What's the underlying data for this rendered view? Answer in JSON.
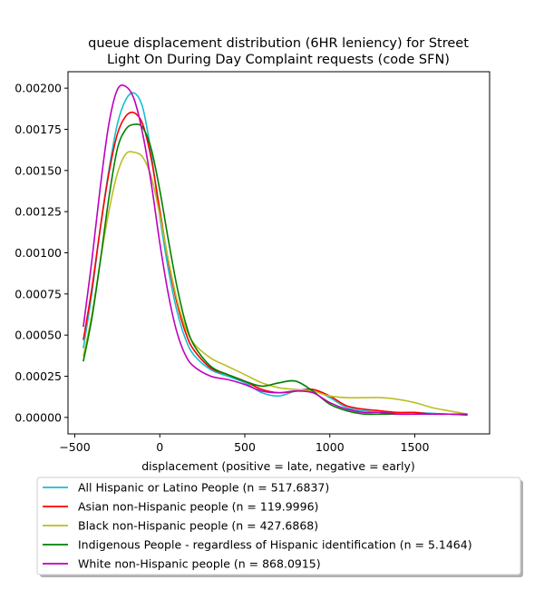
{
  "chart_data": {
    "type": "line",
    "title": "queue displacement distribution (6HR leniency) for Street Light On During Day Complaint  requests (code SFN)",
    "title_lines": [
      "queue displacement distribution (6HR leniency) for Street",
      "Light On During Day Complaint  requests (code SFN)"
    ],
    "xlabel": "displacement (positive = late, negative = early)",
    "ylabel": "",
    "xlim": [
      -540,
      1940
    ],
    "ylim": [
      -0.0001,
      0.0021
    ],
    "xticks": [
      -500,
      0,
      500,
      1000,
      1500
    ],
    "xtick_labels": [
      "−500",
      "0",
      "500",
      "1000",
      "1500"
    ],
    "yticks": [
      0.0,
      0.00025,
      0.0005,
      0.00075,
      0.001,
      0.00125,
      0.0015,
      0.00175,
      0.002
    ],
    "ytick_labels": [
      "0.00000",
      "0.00025",
      "0.00050",
      "0.00075",
      "0.00100",
      "0.00125",
      "0.00150",
      "0.00175",
      "0.00200"
    ],
    "grid": false,
    "legend_position": "below-plot",
    "series": [
      {
        "name": "All Hispanic or Latino People (n = 517.6837)",
        "color": "#17becf",
        "x": [
          -450,
          -400,
          -350,
          -300,
          -250,
          -200,
          -150,
          -100,
          -50,
          0,
          50,
          100,
          150,
          200,
          300,
          400,
          500,
          600,
          700,
          800,
          900,
          1000,
          1100,
          1200,
          1300,
          1400,
          1500,
          1600,
          1700,
          1810
        ],
        "y": [
          0.00042,
          0.00075,
          0.00115,
          0.0015,
          0.00178,
          0.00193,
          0.00197,
          0.00188,
          0.0016,
          0.00122,
          0.0009,
          0.00065,
          0.00048,
          0.00038,
          0.00029,
          0.00025,
          0.00021,
          0.00015,
          0.00013,
          0.00016,
          0.00017,
          0.00012,
          6e-05,
          4e-05,
          3e-05,
          3e-05,
          3e-05,
          2.5e-05,
          2e-05,
          1.5e-05
        ]
      },
      {
        "name": "Asian non-Hispanic people (n = 119.9996)",
        "color": "#ff0000",
        "x": [
          -450,
          -400,
          -350,
          -300,
          -250,
          -200,
          -150,
          -100,
          -50,
          0,
          50,
          100,
          150,
          200,
          300,
          400,
          500,
          600,
          700,
          800,
          900,
          1000,
          1100,
          1200,
          1300,
          1400,
          1500,
          1600,
          1700,
          1810
        ],
        "y": [
          0.00047,
          0.00078,
          0.00115,
          0.00148,
          0.00172,
          0.00183,
          0.00185,
          0.00178,
          0.00157,
          0.00126,
          0.00095,
          0.0007,
          0.00052,
          0.00041,
          0.0003,
          0.00026,
          0.00022,
          0.00017,
          0.00015,
          0.00016,
          0.00017,
          0.00013,
          7e-05,
          5e-05,
          4e-05,
          3e-05,
          3e-05,
          2e-05,
          2e-05,
          2e-05
        ]
      },
      {
        "name": "Black non-Hispanic people (n = 427.6868)",
        "color": "#bcbd22",
        "x": [
          -450,
          -400,
          -350,
          -300,
          -250,
          -200,
          -150,
          -100,
          -50,
          0,
          50,
          100,
          150,
          200,
          300,
          400,
          500,
          600,
          700,
          800,
          900,
          1000,
          1100,
          1200,
          1300,
          1400,
          1500,
          1600,
          1700,
          1810
        ],
        "y": [
          0.00037,
          0.00062,
          0.00095,
          0.00125,
          0.00148,
          0.0016,
          0.00161,
          0.00158,
          0.00146,
          0.00123,
          0.00096,
          0.00072,
          0.00055,
          0.00045,
          0.00036,
          0.00031,
          0.00026,
          0.00021,
          0.00018,
          0.00017,
          0.00016,
          0.00013,
          0.00012,
          0.00012,
          0.00012,
          0.00011,
          9e-05,
          6e-05,
          4e-05,
          2e-05
        ]
      },
      {
        "name": "Indigenous People - regardless of Hispanic identification (n = 5.1464)",
        "color": "#008000",
        "x": [
          -450,
          -400,
          -350,
          -300,
          -250,
          -200,
          -150,
          -100,
          -50,
          0,
          50,
          100,
          150,
          200,
          300,
          400,
          500,
          600,
          700,
          800,
          900,
          1000,
          1100,
          1200,
          1300,
          1400,
          1500,
          1600,
          1700,
          1810
        ],
        "y": [
          0.00034,
          0.0006,
          0.00095,
          0.00133,
          0.00163,
          0.00175,
          0.00178,
          0.00176,
          0.00163,
          0.00138,
          0.00108,
          0.0008,
          0.00058,
          0.00044,
          0.00031,
          0.00026,
          0.00022,
          0.00019,
          0.00021,
          0.00022,
          0.00016,
          8e-05,
          4e-05,
          2e-05,
          2e-05,
          2e-05,
          2e-05,
          2e-05,
          2e-05,
          2e-05
        ]
      },
      {
        "name": "White non-Hispanic people (n = 868.0915)",
        "color": "#bf00bf",
        "x": [
          -450,
          -400,
          -350,
          -300,
          -250,
          -200,
          -150,
          -100,
          -50,
          0,
          50,
          100,
          150,
          200,
          300,
          400,
          500,
          600,
          700,
          800,
          900,
          1000,
          1100,
          1200,
          1300,
          1400,
          1500,
          1600,
          1700,
          1810
        ],
        "y": [
          0.00055,
          0.00095,
          0.0014,
          0.00178,
          0.00199,
          0.00201,
          0.00193,
          0.00172,
          0.00142,
          0.00106,
          0.00075,
          0.00052,
          0.00038,
          0.00031,
          0.00025,
          0.00023,
          0.0002,
          0.00016,
          0.00015,
          0.00016,
          0.00015,
          9e-05,
          5e-05,
          3e-05,
          3e-05,
          2e-05,
          2e-05,
          2e-05,
          2e-05,
          1.5e-05
        ]
      }
    ]
  }
}
